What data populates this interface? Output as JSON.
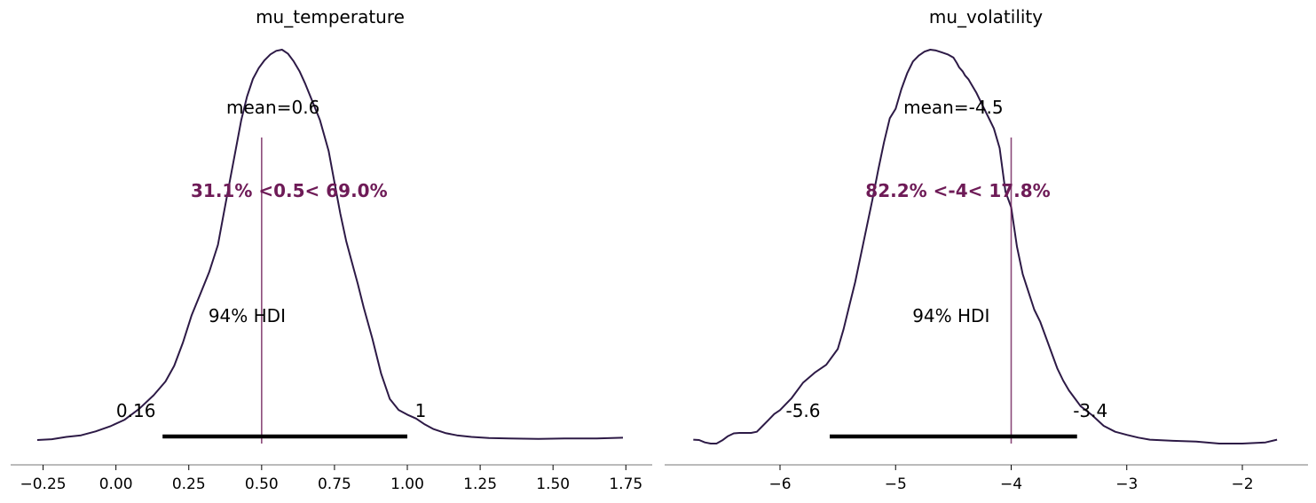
{
  "chart_data": [
    {
      "type": "area",
      "title": "mu_temperature",
      "xlabel": "",
      "ylabel": "",
      "xlim": [
        -0.28,
        1.82
      ],
      "xticks": [
        -0.25,
        0.0,
        0.25,
        0.5,
        0.75,
        1.0,
        1.25,
        1.5,
        1.75
      ],
      "tick_labels": [
        "−0.25",
        "0.00",
        "0.25",
        "0.50",
        "0.75",
        "1.00",
        "1.25",
        "1.50",
        "1.75"
      ],
      "density": {
        "x": [
          -0.27,
          -0.22,
          -0.17,
          -0.12,
          -0.07,
          -0.02,
          0.03,
          0.08,
          0.13,
          0.17,
          0.2,
          0.23,
          0.26,
          0.29,
          0.32,
          0.35,
          0.37,
          0.39,
          0.41,
          0.43,
          0.45,
          0.47,
          0.49,
          0.51,
          0.53,
          0.55,
          0.57,
          0.59,
          0.61,
          0.63,
          0.65,
          0.67,
          0.7,
          0.73,
          0.75,
          0.77,
          0.79,
          0.81,
          0.83,
          0.85,
          0.88,
          0.91,
          0.94,
          0.97,
          1.0,
          1.03,
          1.06,
          1.09,
          1.13,
          1.17,
          1.22,
          1.28,
          1.35,
          1.45,
          1.55,
          1.65,
          1.74
        ],
        "y": [
          0.0,
          0.002,
          0.008,
          0.012,
          0.022,
          0.035,
          0.052,
          0.08,
          0.115,
          0.15,
          0.19,
          0.25,
          0.32,
          0.375,
          0.43,
          0.5,
          0.58,
          0.66,
          0.74,
          0.82,
          0.88,
          0.925,
          0.953,
          0.973,
          0.988,
          0.997,
          1.0,
          0.99,
          0.97,
          0.945,
          0.912,
          0.875,
          0.82,
          0.74,
          0.66,
          0.58,
          0.51,
          0.455,
          0.4,
          0.34,
          0.26,
          0.17,
          0.105,
          0.077,
          0.065,
          0.055,
          0.04,
          0.028,
          0.018,
          0.012,
          0.008,
          0.005,
          0.004,
          0.003,
          0.004,
          0.004,
          0.006
        ]
      },
      "mean": 0.6,
      "mean_label": "mean=0.6",
      "ref_val": 0.5,
      "ref_label": "31.1% <0.5< 69.0%",
      "hdi_label": "94% HDI",
      "hdi": [
        0.16,
        1.0
      ],
      "hdi_low_label": "0.16",
      "hdi_high_label": "1"
    },
    {
      "type": "area",
      "title": "mu_volatility",
      "xlabel": "",
      "ylabel": "",
      "xlim": [
        -6.97,
        -1.43
      ],
      "xticks": [
        -6,
        -5,
        -4,
        -3,
        -2
      ],
      "tick_labels": [
        "−6",
        "−5",
        "−4",
        "−3",
        "−2"
      ],
      "density": {
        "x": [
          -6.75,
          -6.7,
          -6.65,
          -6.6,
          -6.55,
          -6.5,
          -6.45,
          -6.4,
          -6.35,
          -6.3,
          -6.25,
          -6.2,
          -6.15,
          -6.1,
          -6.05,
          -6.0,
          -5.9,
          -5.8,
          -5.7,
          -5.6,
          -5.5,
          -5.45,
          -5.4,
          -5.35,
          -5.3,
          -5.25,
          -5.2,
          -5.15,
          -5.1,
          -5.05,
          -5.0,
          -4.95,
          -4.9,
          -4.85,
          -4.8,
          -4.75,
          -4.7,
          -4.65,
          -4.6,
          -4.55,
          -4.5,
          -4.47,
          -4.45,
          -4.42,
          -4.4,
          -4.37,
          -4.35,
          -4.3,
          -4.25,
          -4.2,
          -4.15,
          -4.1,
          -4.05,
          -4.0,
          -3.95,
          -3.9,
          -3.85,
          -3.8,
          -3.75,
          -3.7,
          -3.65,
          -3.6,
          -3.55,
          -3.5,
          -3.45,
          -3.4,
          -3.3,
          -3.2,
          -3.1,
          -3.0,
          -2.9,
          -2.8,
          -2.6,
          -2.4,
          -2.2,
          -2.0,
          -1.8,
          -1.7
        ],
        "y": [
          0.01,
          0.009,
          0.003,
          0.0,
          0.0,
          0.008,
          0.019,
          0.026,
          0.027,
          0.027,
          0.027,
          0.03,
          0.045,
          0.06,
          0.075,
          0.085,
          0.115,
          0.155,
          0.18,
          0.2,
          0.24,
          0.29,
          0.35,
          0.41,
          0.48,
          0.55,
          0.62,
          0.695,
          0.765,
          0.826,
          0.85,
          0.9,
          0.94,
          0.97,
          0.985,
          0.995,
          1.0,
          0.998,
          0.993,
          0.988,
          0.98,
          0.966,
          0.955,
          0.945,
          0.935,
          0.925,
          0.915,
          0.89,
          0.86,
          0.83,
          0.8,
          0.75,
          0.64,
          0.6,
          0.5,
          0.43,
          0.385,
          0.34,
          0.31,
          0.27,
          0.23,
          0.19,
          0.16,
          0.135,
          0.115,
          0.095,
          0.072,
          0.045,
          0.03,
          0.022,
          0.015,
          0.01,
          0.007,
          0.005,
          0.0,
          0.0,
          0.003,
          0.01
        ]
      },
      "mean": -4.5,
      "mean_label": "mean=-4.5",
      "ref_val": -4,
      "ref_label": "82.2% <-4< 17.8%",
      "hdi_label": "94% HDI",
      "hdi": [
        -5.57,
        -3.43
      ],
      "hdi_low_label": "-5.6",
      "hdi_high_label": "-3.4"
    }
  ],
  "colors": {
    "density_line": "#2d1a46",
    "reference": "#6e1b57",
    "hdi_bar": "#000000",
    "axis": "#777777",
    "text": "#000000"
  }
}
